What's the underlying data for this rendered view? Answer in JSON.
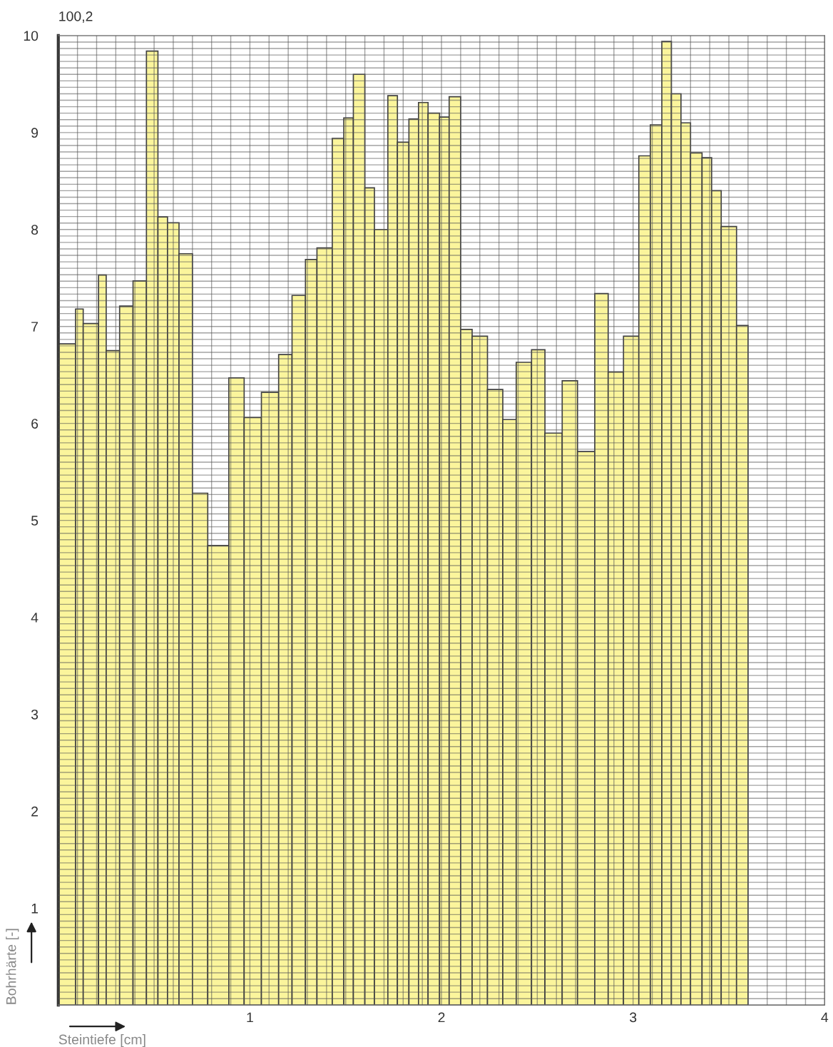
{
  "chart_data": {
    "type": "histogram",
    "xlabel": "Steintiefe [cm]",
    "ylabel": "Bohrhärte [-]",
    "annotations": [
      "100,2"
    ],
    "bins": [
      0,
      0.09,
      0.13,
      0.21,
      0.25,
      0.32,
      0.39,
      0.46,
      0.52,
      0.57,
      0.63,
      0.7,
      0.78,
      0.89,
      0.97,
      1.06,
      1.15,
      1.22,
      1.29,
      1.35,
      1.43,
      1.49,
      1.54,
      1.6,
      1.65,
      1.72,
      1.77,
      1.83,
      1.88,
      1.93,
      1.99,
      2.04,
      2.1,
      2.16,
      2.24,
      2.32,
      2.39,
      2.47,
      2.54,
      2.63,
      2.71,
      2.8,
      2.87,
      2.95,
      3.03,
      3.09,
      3.15,
      3.2,
      3.25,
      3.3,
      3.36,
      3.41,
      3.46,
      3.54,
      3.6
    ],
    "values": [
      6.82,
      7.18,
      7.03,
      7.53,
      6.75,
      7.21,
      7.47,
      9.84,
      8.13,
      8.07,
      7.75,
      5.28,
      4.74,
      6.47,
      6.06,
      6.32,
      6.71,
      7.32,
      7.69,
      7.81,
      8.94,
      9.15,
      9.6,
      8.43,
      8.0,
      9.38,
      8.9,
      9.14,
      9.31,
      9.2,
      9.16,
      9.37,
      6.97,
      6.9,
      6.35,
      6.04,
      6.63,
      6.76,
      5.9,
      6.44,
      5.71,
      7.34,
      6.53,
      6.9,
      8.76,
      9.08,
      9.94,
      9.4,
      9.1,
      8.79,
      8.74,
      8.4,
      8.03,
      7.01
    ],
    "color": "#fbf59c",
    "xlim": [
      0,
      4
    ],
    "ylim": [
      0,
      10
    ],
    "xticks": [
      1,
      2,
      3,
      4
    ],
    "yticks": [
      1,
      2,
      3,
      4,
      5,
      6,
      7,
      8,
      9,
      10
    ],
    "grid": true
  }
}
